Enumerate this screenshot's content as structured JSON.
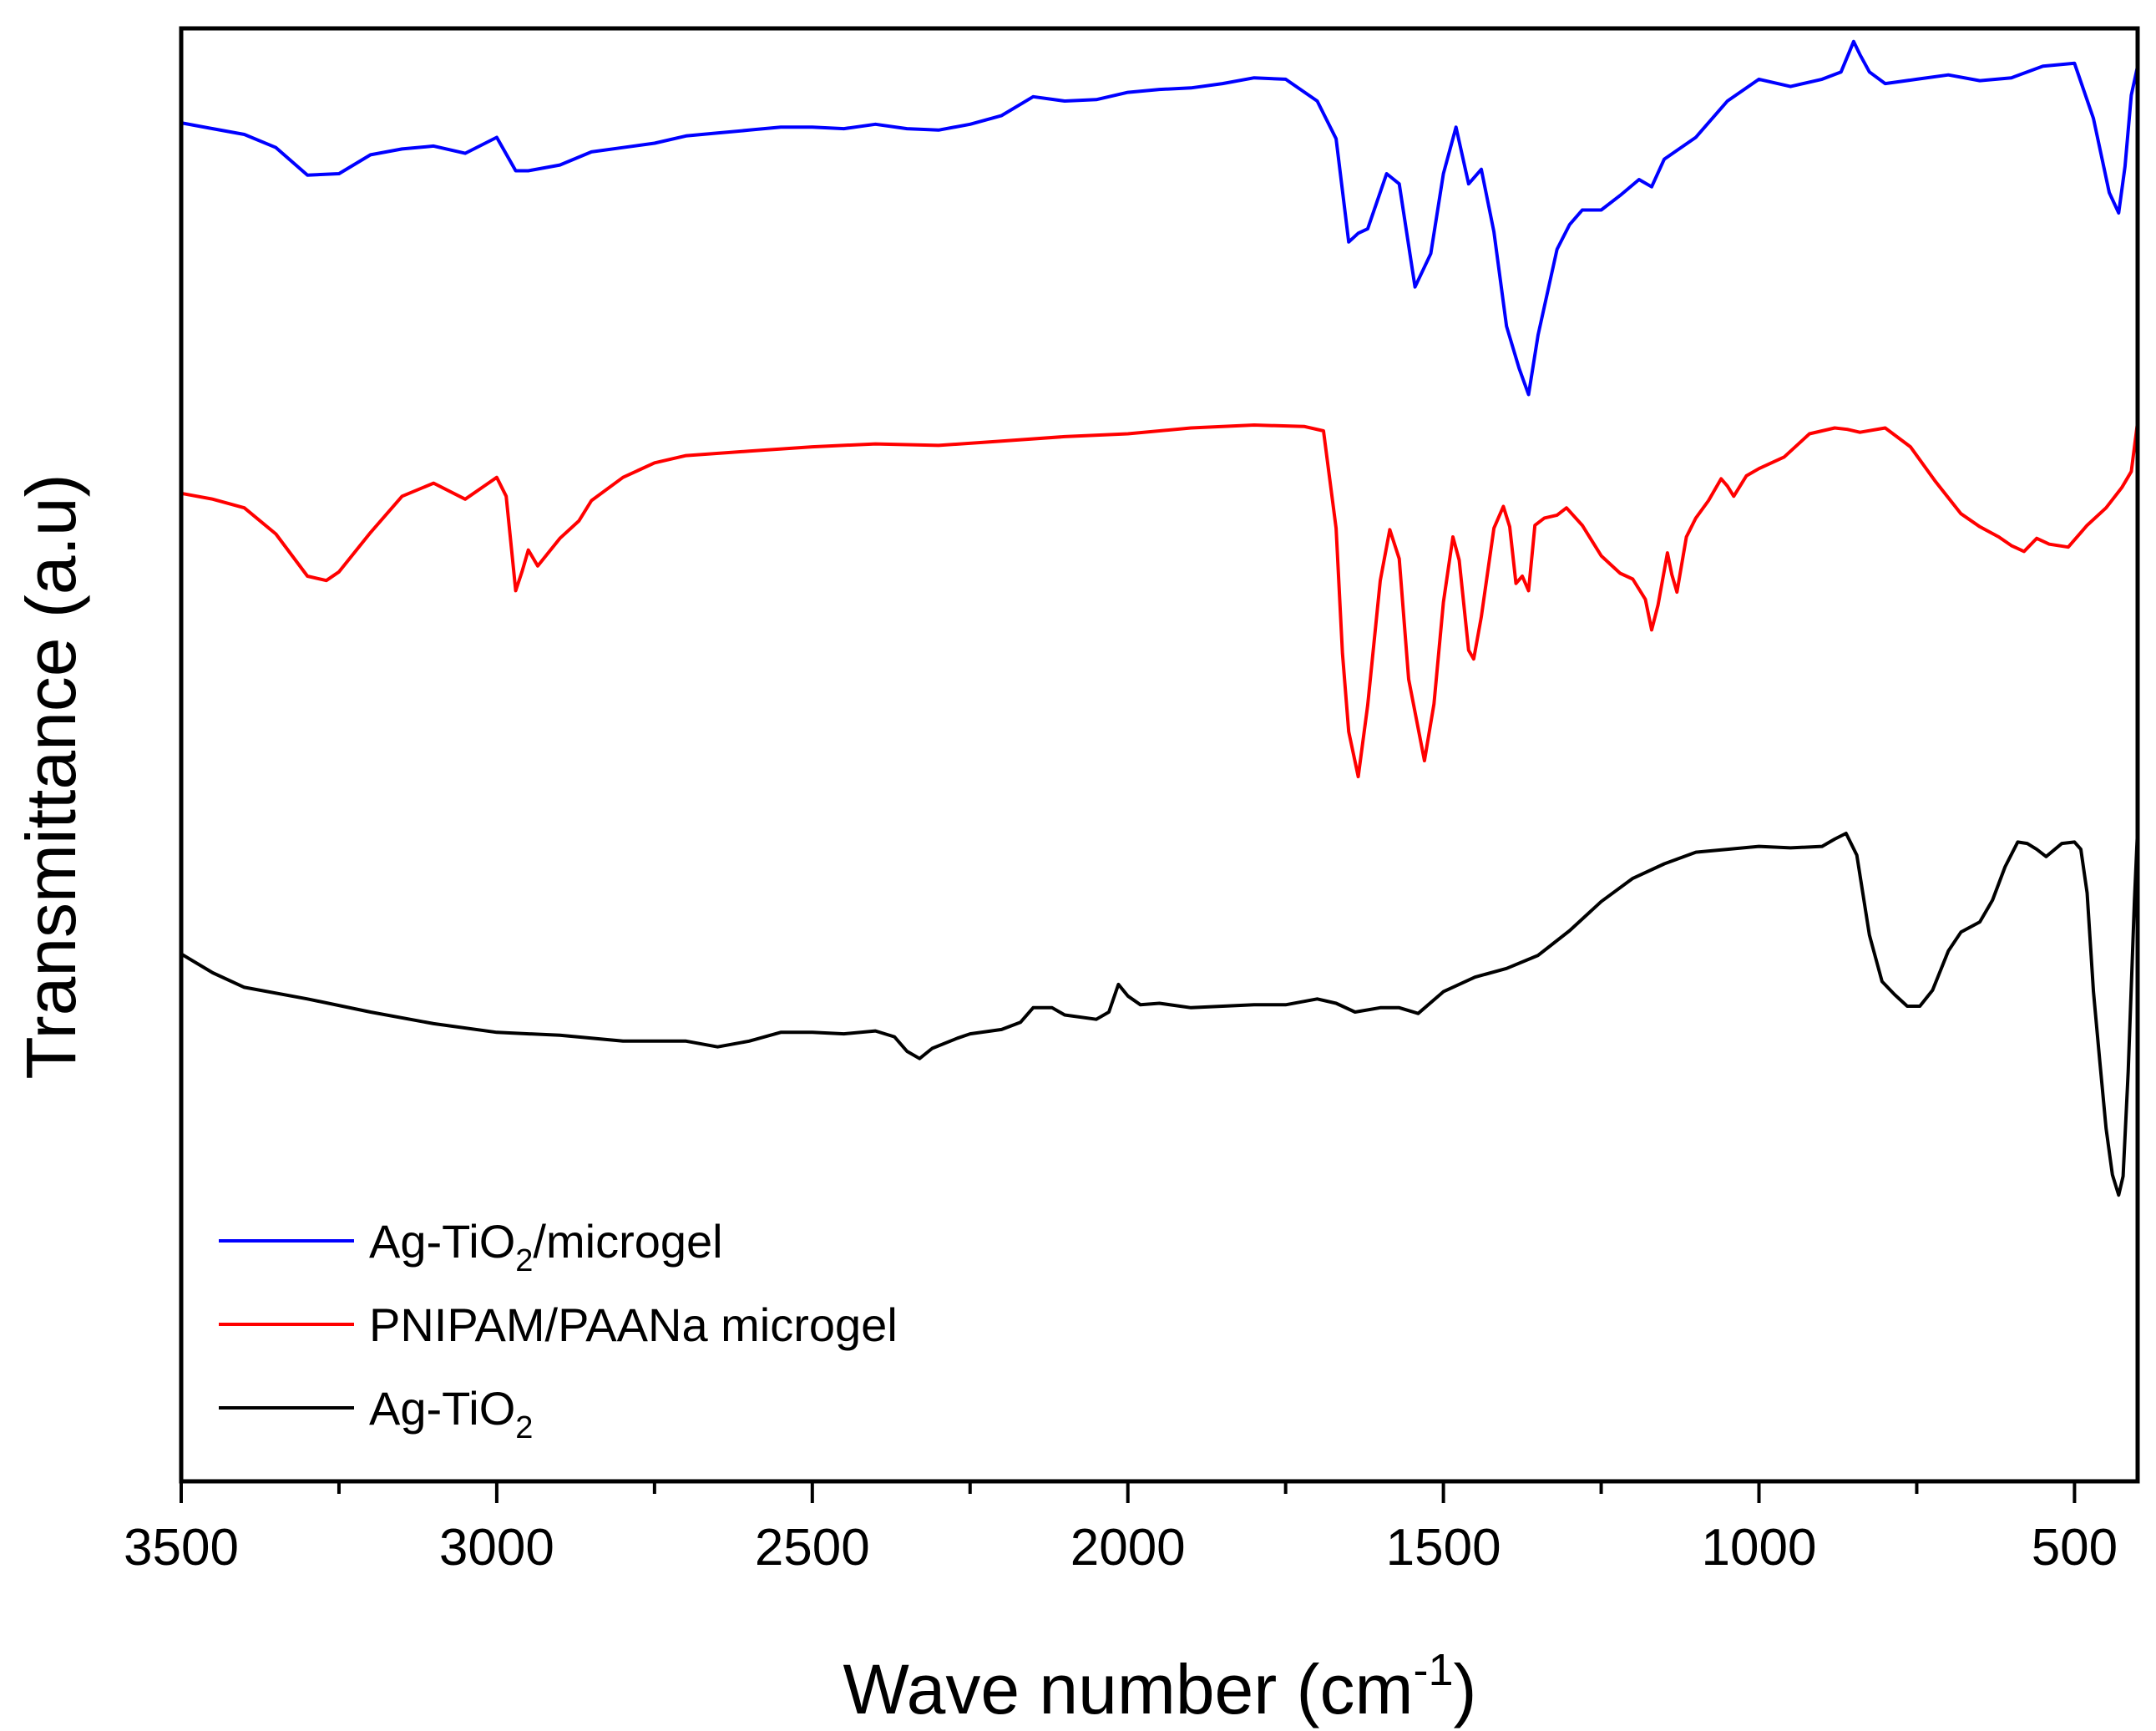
{
  "chart_data": {
    "type": "line",
    "title": "",
    "xlabel": {
      "main": "Wave number (cm",
      "sup": "-1",
      "tail": ")"
    },
    "ylabel": "Transmittance (a.u)",
    "xlim": [
      3500,
      400
    ],
    "x_reversed": true,
    "ylim": [
      0,
      100
    ],
    "y_ticks_labeled": false,
    "x_ticks": [
      3500,
      3000,
      2500,
      2000,
      1500,
      1000,
      500
    ],
    "x_tick_labels": [
      "3500",
      "3000",
      "2500",
      "2000",
      "1500",
      "1000",
      "500"
    ],
    "x_minor_ticks": [
      3250,
      2750,
      2250,
      1750,
      1250,
      750
    ],
    "legend_position": "bottom-left",
    "series": [
      {
        "name": "Ag-TiO2/microgel",
        "label_main": "Ag-TiO",
        "label_sub": "2",
        "label_tail": "/microgel",
        "color": "#0000ff",
        "points": [
          [
            3500,
            93.5
          ],
          [
            3450,
            93.1
          ],
          [
            3400,
            92.7
          ],
          [
            3350,
            91.8
          ],
          [
            3300,
            89.9
          ],
          [
            3250,
            90.0
          ],
          [
            3200,
            91.3
          ],
          [
            3150,
            91.7
          ],
          [
            3100,
            91.9
          ],
          [
            3050,
            91.4
          ],
          [
            3000,
            92.5
          ],
          [
            2970,
            90.2
          ],
          [
            2950,
            90.2
          ],
          [
            2900,
            90.6
          ],
          [
            2850,
            91.5
          ],
          [
            2800,
            91.8
          ],
          [
            2750,
            92.1
          ],
          [
            2700,
            92.6
          ],
          [
            2650,
            92.8
          ],
          [
            2600,
            93.0
          ],
          [
            2550,
            93.2
          ],
          [
            2500,
            93.2
          ],
          [
            2450,
            93.1
          ],
          [
            2400,
            93.4
          ],
          [
            2350,
            93.1
          ],
          [
            2300,
            93.0
          ],
          [
            2250,
            93.4
          ],
          [
            2200,
            94.0
          ],
          [
            2150,
            95.3
          ],
          [
            2100,
            95.0
          ],
          [
            2050,
            95.1
          ],
          [
            2000,
            95.6
          ],
          [
            1950,
            95.8
          ],
          [
            1900,
            95.9
          ],
          [
            1850,
            96.2
          ],
          [
            1800,
            96.6
          ],
          [
            1750,
            96.5
          ],
          [
            1700,
            95.0
          ],
          [
            1670,
            92.4
          ],
          [
            1650,
            85.3
          ],
          [
            1635,
            85.9
          ],
          [
            1620,
            86.2
          ],
          [
            1590,
            90.0
          ],
          [
            1570,
            89.3
          ],
          [
            1545,
            82.2
          ],
          [
            1520,
            84.5
          ],
          [
            1500,
            90.0
          ],
          [
            1480,
            93.2
          ],
          [
            1460,
            89.3
          ],
          [
            1440,
            90.3
          ],
          [
            1420,
            86.0
          ],
          [
            1400,
            79.5
          ],
          [
            1380,
            76.6
          ],
          [
            1365,
            74.8
          ],
          [
            1350,
            78.9
          ],
          [
            1320,
            84.8
          ],
          [
            1300,
            86.5
          ],
          [
            1280,
            87.5
          ],
          [
            1250,
            87.5
          ],
          [
            1220,
            88.5
          ],
          [
            1190,
            89.6
          ],
          [
            1170,
            89.1
          ],
          [
            1150,
            91.0
          ],
          [
            1100,
            92.5
          ],
          [
            1050,
            95.0
          ],
          [
            1000,
            96.5
          ],
          [
            950,
            96.0
          ],
          [
            900,
            96.5
          ],
          [
            870,
            97.0
          ],
          [
            850,
            99.1
          ],
          [
            840,
            98.2
          ],
          [
            825,
            97.0
          ],
          [
            800,
            96.2
          ],
          [
            750,
            96.5
          ],
          [
            700,
            96.8
          ],
          [
            650,
            96.4
          ],
          [
            600,
            96.6
          ],
          [
            550,
            97.4
          ],
          [
            500,
            97.6
          ],
          [
            470,
            93.8
          ],
          [
            445,
            88.7
          ],
          [
            430,
            87.3
          ],
          [
            420,
            90.5
          ],
          [
            410,
            95.4
          ],
          [
            400,
            97.4
          ]
        ]
      },
      {
        "name": "PNIPAM/PAANa microgel",
        "label_main": "PNIPAM/PAANa microgel",
        "label_sub": "",
        "label_tail": "",
        "color": "#ff0000",
        "points": [
          [
            3500,
            68.0
          ],
          [
            3450,
            67.6
          ],
          [
            3400,
            67.0
          ],
          [
            3350,
            65.2
          ],
          [
            3300,
            62.3
          ],
          [
            3270,
            62.0
          ],
          [
            3250,
            62.6
          ],
          [
            3200,
            65.3
          ],
          [
            3150,
            67.8
          ],
          [
            3100,
            68.7
          ],
          [
            3050,
            67.6
          ],
          [
            3020,
            68.5
          ],
          [
            3000,
            69.1
          ],
          [
            2985,
            67.8
          ],
          [
            2970,
            61.3
          ],
          [
            2960,
            62.6
          ],
          [
            2950,
            64.1
          ],
          [
            2935,
            63.0
          ],
          [
            2900,
            64.9
          ],
          [
            2870,
            66.1
          ],
          [
            2850,
            67.5
          ],
          [
            2800,
            69.1
          ],
          [
            2750,
            70.1
          ],
          [
            2700,
            70.6
          ],
          [
            2600,
            70.9
          ],
          [
            2500,
            71.2
          ],
          [
            2400,
            71.4
          ],
          [
            2300,
            71.3
          ],
          [
            2200,
            71.6
          ],
          [
            2100,
            71.9
          ],
          [
            2000,
            72.1
          ],
          [
            1900,
            72.5
          ],
          [
            1800,
            72.7
          ],
          [
            1720,
            72.6
          ],
          [
            1690,
            72.3
          ],
          [
            1670,
            65.6
          ],
          [
            1660,
            57.0
          ],
          [
            1650,
            51.6
          ],
          [
            1635,
            48.5
          ],
          [
            1620,
            53.4
          ],
          [
            1600,
            62.0
          ],
          [
            1585,
            65.5
          ],
          [
            1570,
            63.5
          ],
          [
            1555,
            55.2
          ],
          [
            1530,
            49.6
          ],
          [
            1515,
            53.5
          ],
          [
            1500,
            60.5
          ],
          [
            1485,
            65.0
          ],
          [
            1475,
            63.4
          ],
          [
            1460,
            57.2
          ],
          [
            1452,
            56.6
          ],
          [
            1440,
            59.5
          ],
          [
            1420,
            65.6
          ],
          [
            1405,
            67.1
          ],
          [
            1395,
            65.7
          ],
          [
            1385,
            61.8
          ],
          [
            1375,
            62.3
          ],
          [
            1365,
            61.3
          ],
          [
            1355,
            65.8
          ],
          [
            1340,
            66.3
          ],
          [
            1320,
            66.5
          ],
          [
            1305,
            67.0
          ],
          [
            1280,
            65.8
          ],
          [
            1250,
            63.7
          ],
          [
            1220,
            62.5
          ],
          [
            1200,
            62.1
          ],
          [
            1180,
            60.7
          ],
          [
            1170,
            58.6
          ],
          [
            1160,
            60.3
          ],
          [
            1145,
            63.9
          ],
          [
            1138,
            62.4
          ],
          [
            1130,
            61.2
          ],
          [
            1115,
            65.0
          ],
          [
            1100,
            66.3
          ],
          [
            1080,
            67.5
          ],
          [
            1060,
            69.0
          ],
          [
            1050,
            68.5
          ],
          [
            1040,
            67.8
          ],
          [
            1020,
            69.2
          ],
          [
            1000,
            69.7
          ],
          [
            960,
            70.5
          ],
          [
            920,
            72.1
          ],
          [
            880,
            72.5
          ],
          [
            860,
            72.4
          ],
          [
            840,
            72.2
          ],
          [
            800,
            72.5
          ],
          [
            760,
            71.2
          ],
          [
            720,
            68.8
          ],
          [
            680,
            66.6
          ],
          [
            650,
            65.7
          ],
          [
            620,
            65.0
          ],
          [
            600,
            64.4
          ],
          [
            580,
            64.0
          ],
          [
            560,
            64.9
          ],
          [
            540,
            64.5
          ],
          [
            510,
            64.3
          ],
          [
            480,
            65.8
          ],
          [
            450,
            67.0
          ],
          [
            425,
            68.4
          ],
          [
            410,
            69.5
          ],
          [
            400,
            72.9
          ]
        ]
      },
      {
        "name": "Ag-TiO2",
        "label_main": "Ag-TiO",
        "label_sub": "2",
        "label_tail": "",
        "color": "#000000",
        "points": [
          [
            3500,
            36.3
          ],
          [
            3450,
            35.0
          ],
          [
            3400,
            34.0
          ],
          [
            3300,
            33.2
          ],
          [
            3200,
            32.3
          ],
          [
            3100,
            31.5
          ],
          [
            3000,
            30.9
          ],
          [
            2900,
            30.7
          ],
          [
            2800,
            30.3
          ],
          [
            2700,
            30.3
          ],
          [
            2650,
            29.9
          ],
          [
            2600,
            30.3
          ],
          [
            2550,
            30.9
          ],
          [
            2500,
            30.9
          ],
          [
            2450,
            30.8
          ],
          [
            2400,
            31.0
          ],
          [
            2370,
            30.6
          ],
          [
            2350,
            29.6
          ],
          [
            2330,
            29.1
          ],
          [
            2310,
            29.8
          ],
          [
            2270,
            30.5
          ],
          [
            2250,
            30.8
          ],
          [
            2200,
            31.1
          ],
          [
            2170,
            31.6
          ],
          [
            2150,
            32.6
          ],
          [
            2120,
            32.6
          ],
          [
            2100,
            32.1
          ],
          [
            2050,
            31.8
          ],
          [
            2030,
            32.3
          ],
          [
            2015,
            34.2
          ],
          [
            2000,
            33.4
          ],
          [
            1980,
            32.8
          ],
          [
            1950,
            32.9
          ],
          [
            1900,
            32.6
          ],
          [
            1850,
            32.7
          ],
          [
            1800,
            32.8
          ],
          [
            1750,
            32.8
          ],
          [
            1700,
            33.2
          ],
          [
            1670,
            32.9
          ],
          [
            1640,
            32.3
          ],
          [
            1600,
            32.6
          ],
          [
            1570,
            32.6
          ],
          [
            1540,
            32.2
          ],
          [
            1500,
            33.7
          ],
          [
            1450,
            34.7
          ],
          [
            1400,
            35.3
          ],
          [
            1350,
            36.2
          ],
          [
            1300,
            37.9
          ],
          [
            1250,
            39.9
          ],
          [
            1200,
            41.5
          ],
          [
            1150,
            42.5
          ],
          [
            1100,
            43.3
          ],
          [
            1050,
            43.5
          ],
          [
            1000,
            43.7
          ],
          [
            950,
            43.6
          ],
          [
            900,
            43.7
          ],
          [
            880,
            44.2
          ],
          [
            862,
            44.6
          ],
          [
            845,
            43.1
          ],
          [
            825,
            37.6
          ],
          [
            805,
            34.4
          ],
          [
            785,
            33.5
          ],
          [
            765,
            32.7
          ],
          [
            745,
            32.7
          ],
          [
            725,
            33.8
          ],
          [
            700,
            36.5
          ],
          [
            680,
            37.8
          ],
          [
            650,
            38.5
          ],
          [
            630,
            40.0
          ],
          [
            610,
            42.3
          ],
          [
            590,
            44.0
          ],
          [
            575,
            43.9
          ],
          [
            560,
            43.5
          ],
          [
            545,
            43.0
          ],
          [
            520,
            43.9
          ],
          [
            500,
            44.0
          ],
          [
            490,
            43.5
          ],
          [
            480,
            40.5
          ],
          [
            470,
            33.7
          ],
          [
            460,
            28.9
          ],
          [
            450,
            24.3
          ],
          [
            440,
            21.1
          ],
          [
            430,
            19.7
          ],
          [
            423,
            21.0
          ],
          [
            415,
            28.2
          ],
          [
            405,
            40.0
          ],
          [
            400,
            44.9
          ]
        ]
      }
    ]
  }
}
